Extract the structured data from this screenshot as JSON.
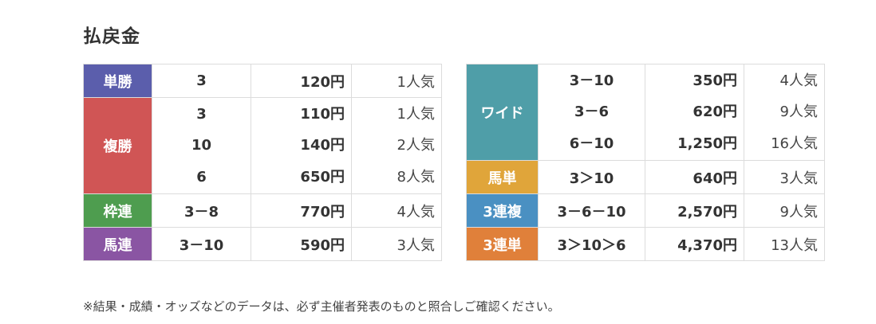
{
  "title": "払戻金",
  "colors": {
    "tansho": "#5b5eac",
    "fukusho": "#d05555",
    "wakuren": "#4e9d4f",
    "umaren": "#8a55a3",
    "wide": "#4f9ea8",
    "umatan": "#e0a53a",
    "sanrenpuku": "#4a90c2",
    "sanrentan": "#e0803a"
  },
  "left": {
    "tansho": {
      "label": "単勝",
      "rows": [
        {
          "num": "3",
          "amount": "120円",
          "pop": "1人気"
        }
      ]
    },
    "fukusho": {
      "label": "複勝",
      "rows": [
        {
          "num": "3",
          "amount": "110円",
          "pop": "1人気"
        },
        {
          "num": "10",
          "amount": "140円",
          "pop": "2人気"
        },
        {
          "num": "6",
          "amount": "650円",
          "pop": "8人気"
        }
      ]
    },
    "wakuren": {
      "label": "枠連",
      "rows": [
        {
          "num": "3－8",
          "amount": "770円",
          "pop": "4人気"
        }
      ]
    },
    "umaren": {
      "label": "馬連",
      "rows": [
        {
          "num": "3－10",
          "amount": "590円",
          "pop": "3人気"
        }
      ]
    }
  },
  "right": {
    "wide": {
      "label": "ワイド",
      "rows": [
        {
          "num": "3－10",
          "amount": "350円",
          "pop": "4人気"
        },
        {
          "num": "3－6",
          "amount": "620円",
          "pop": "9人気"
        },
        {
          "num": "6－10",
          "amount": "1,250円",
          "pop": "16人気"
        }
      ]
    },
    "umatan": {
      "label": "馬単",
      "rows": [
        {
          "num": "3＞10",
          "amount": "640円",
          "pop": "3人気"
        }
      ]
    },
    "sanrenpuku": {
      "label": "3連複",
      "rows": [
        {
          "num": "3－6－10",
          "amount": "2,570円",
          "pop": "9人気"
        }
      ]
    },
    "sanrentan": {
      "label": "3連単",
      "rows": [
        {
          "num": "3＞10＞6",
          "amount": "4,370円",
          "pop": "13人気"
        }
      ]
    }
  },
  "note": "※結果・成績・オッズなどのデータは、必ず主催者発表のものと照合しご確認ください。"
}
